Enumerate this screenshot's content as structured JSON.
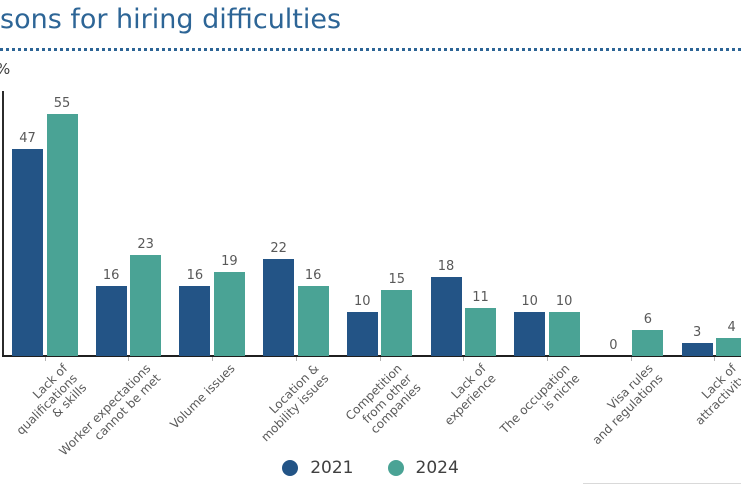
{
  "page": {
    "title": "sons for hiring difficulties"
  },
  "colors": {
    "title": "#2d6596",
    "bar_2021": "#235486",
    "bar_2024": "#4aa395",
    "value_text": "#595959",
    "axis": "#262626",
    "legend_text": "#404040"
  },
  "chart_data": {
    "type": "bar",
    "title": "sons for hiring difficulties",
    "ylabel": "%",
    "xlabel": "",
    "ylim": [
      0,
      60
    ],
    "grid": false,
    "legend_position": "bottom",
    "bar_labels": true,
    "categories": [
      "Lack of\nqualifications\n& skills",
      "Worker expectations\ncannot be met",
      "Volume issues",
      "Location &\nmobility issues",
      "Competition\nfrom other\ncompanies",
      "Lack of\nexperience",
      "The occupation\nis niche",
      "Visa rules\nand regulations",
      "Lack of\nattractivity"
    ],
    "series": [
      {
        "name": "2021",
        "values": [
          47,
          16,
          16,
          22,
          10,
          18,
          10,
          0,
          3
        ]
      },
      {
        "name": "2024",
        "values": [
          55,
          23,
          19,
          16,
          15,
          11,
          10,
          6,
          4
        ]
      }
    ]
  }
}
